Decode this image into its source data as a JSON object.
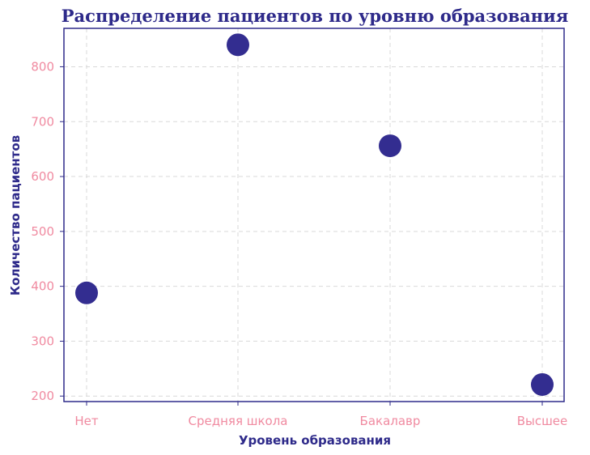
{
  "colors": {
    "title": "#2e2a8a",
    "axis_label": "#2e2a8a",
    "tick_label": "#f08aa0",
    "frame": "#2e2a8a",
    "marker": "#332d90",
    "grid": "#d9d9d9"
  },
  "chart_data": {
    "type": "scatter",
    "title": "Распределение пациентов по уровню образования",
    "xlabel": "Уровень образования",
    "ylabel": "Количество пациентов",
    "categories": [
      "Нет",
      "Средняя школа",
      "Бакалавр",
      "Высшее"
    ],
    "values": [
      388,
      840,
      656,
      221
    ],
    "yticks": [
      200,
      300,
      400,
      500,
      600,
      700,
      800
    ],
    "ylim": [
      190,
      870
    ],
    "grid": true,
    "grid_style": "dashed"
  }
}
